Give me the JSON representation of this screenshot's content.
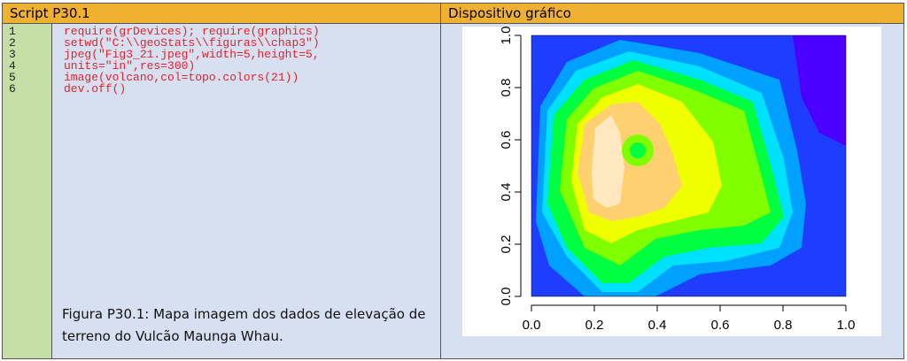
{
  "table": {
    "headers": [
      "Script P30.1",
      "Dispositivo gráfico"
    ],
    "line_numbers": [
      "1",
      "2",
      "3",
      "4",
      "5",
      "6"
    ],
    "code": [
      "require(grDevices); require(graphics)",
      "setwd(\"C:\\\\geoStats\\\\figuras\\\\chap3\")",
      "jpeg(\"Fig3_21.jpeg\",width=5,height=5,",
      "units=\"in\",res=300)",
      "image(volcano,col=topo.colors(21))",
      "dev.off()"
    ],
    "caption": "Figura P30.1: Mapa imagem dos dados de elevação de terreno do Vulcão Maunga Whau."
  },
  "chart_data": {
    "type": "image",
    "xlim": [
      0,
      1
    ],
    "ylim": [
      0,
      1
    ],
    "xticks": [
      {
        "value": 0,
        "label": "0.0"
      },
      0.2,
      0.4,
      0.6,
      0.8,
      {
        "value": 1,
        "label": "1.0"
      }
    ],
    "yticks": [
      {
        "value": 0,
        "label": "0.0"
      },
      0.2,
      0.4,
      0.6,
      0.8,
      {
        "value": 1,
        "label": "1.0"
      }
    ]
  }
}
